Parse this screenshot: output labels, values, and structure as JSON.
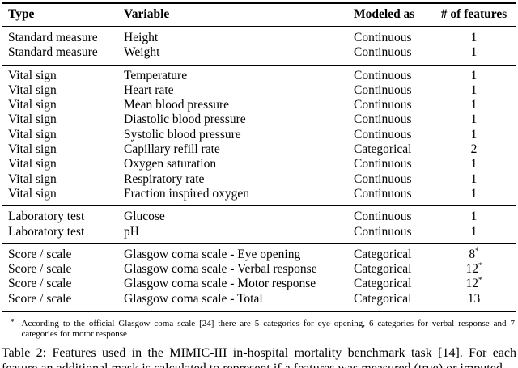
{
  "table": {
    "columns": [
      "Type",
      "Variable",
      "Modeled as",
      "# of features"
    ],
    "sections": [
      {
        "rows": [
          {
            "type": "Standard measure",
            "variable": "Height",
            "modeled_as": "Continuous",
            "features": "1",
            "features_note": ""
          },
          {
            "type": "Standard measure",
            "variable": "Weight",
            "modeled_as": "Continuous",
            "features": "1",
            "features_note": ""
          }
        ]
      },
      {
        "rows": [
          {
            "type": "Vital sign",
            "variable": "Temperature",
            "modeled_as": "Continuous",
            "features": "1",
            "features_note": ""
          },
          {
            "type": "Vital sign",
            "variable": "Heart rate",
            "modeled_as": "Continuous",
            "features": "1",
            "features_note": ""
          },
          {
            "type": "Vital sign",
            "variable": "Mean blood pressure",
            "modeled_as": "Continuous",
            "features": "1",
            "features_note": ""
          },
          {
            "type": "Vital sign",
            "variable": "Diastolic blood pressure",
            "modeled_as": "Continuous",
            "features": "1",
            "features_note": ""
          },
          {
            "type": "Vital sign",
            "variable": "Systolic blood pressure",
            "modeled_as": "Continuous",
            "features": "1",
            "features_note": ""
          },
          {
            "type": "Vital sign",
            "variable": "Capillary refill rate",
            "modeled_as": "Categorical",
            "features": "2",
            "features_note": ""
          },
          {
            "type": "Vital sign",
            "variable": "Oxygen saturation",
            "modeled_as": "Continuous",
            "features": "1",
            "features_note": ""
          },
          {
            "type": "Vital sign",
            "variable": "Respiratory rate",
            "modeled_as": "Continuous",
            "features": "1",
            "features_note": ""
          },
          {
            "type": "Vital sign",
            "variable": "Fraction inspired oxygen",
            "modeled_as": "Continuous",
            "features": "1",
            "features_note": ""
          }
        ]
      },
      {
        "rows": [
          {
            "type": "Laboratory test",
            "variable": "Glucose",
            "modeled_as": "Continuous",
            "features": "1",
            "features_note": ""
          },
          {
            "type": "Laboratory test",
            "variable": "pH",
            "modeled_as": "Continuous",
            "features": "1",
            "features_note": ""
          }
        ]
      },
      {
        "rows": [
          {
            "type": "Score / scale",
            "variable": "Glasgow coma scale - Eye opening",
            "modeled_as": "Categorical",
            "features": "8",
            "features_note": "*"
          },
          {
            "type": "Score / scale",
            "variable": "Glasgow coma scale - Verbal response",
            "modeled_as": "Categorical",
            "features": "12",
            "features_note": "*"
          },
          {
            "type": "Score / scale",
            "variable": "Glasgow coma scale - Motor response",
            "modeled_as": "Categorical",
            "features": "12",
            "features_note": "*"
          },
          {
            "type": "Score / scale",
            "variable": "Glasgow coma scale - Total",
            "modeled_as": "Categorical",
            "features": "13",
            "features_note": ""
          }
        ]
      }
    ]
  },
  "footnote": {
    "marker": "*",
    "text": "According to the official Glasgow coma scale [24] there are 5 categories for eye opening, 6 categories for verbal response and 7 categories for motor response"
  },
  "caption": "Table 2: Features used in the MIMIC-III in-hospital mortality benchmark task [14]. For each feature an additional mask is calculated to represent if a features was measured (true) or imputed"
}
